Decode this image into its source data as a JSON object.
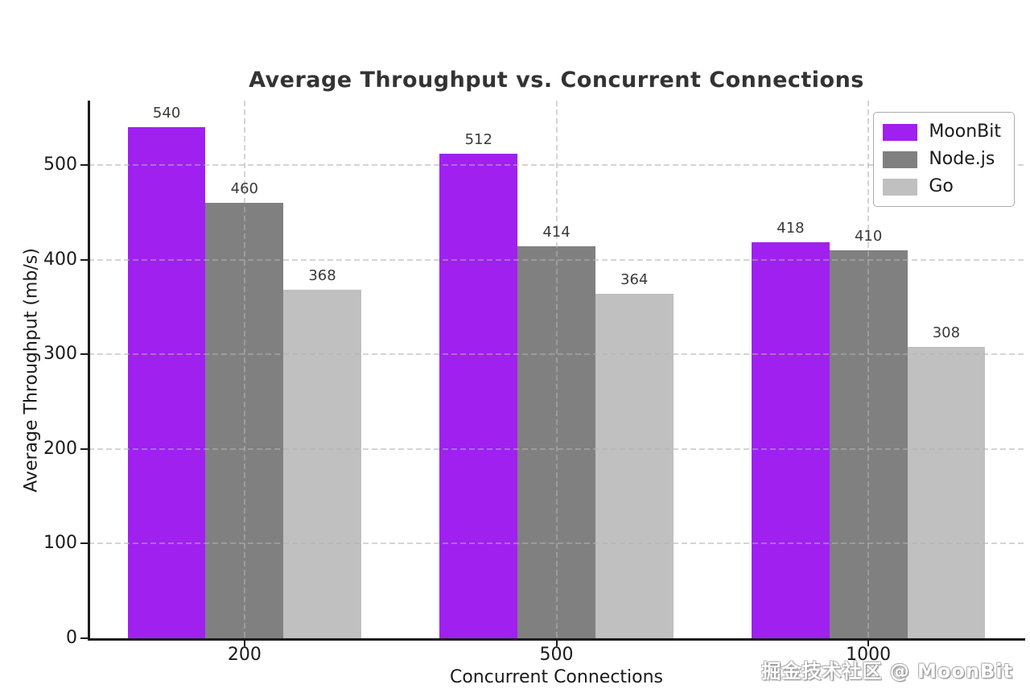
{
  "watermark": "掘金技术社区 @ MoonBit",
  "chart_data": {
    "type": "bar",
    "title": "Average Throughput vs. Concurrent Connections",
    "xlabel": "Concurrent Connections",
    "ylabel": "Average Throughput (mb/s)",
    "categories": [
      "200",
      "500",
      "1000"
    ],
    "series": [
      {
        "name": "MoonBit",
        "color": "#A020F0",
        "values": [
          540,
          512,
          418
        ]
      },
      {
        "name": "Node.js",
        "color": "#808080",
        "values": [
          460,
          414,
          410
        ]
      },
      {
        "name": "Go",
        "color": "#C0C0C0",
        "values": [
          368,
          364,
          308
        ]
      }
    ],
    "ylim": [
      0,
      568
    ],
    "yticks": [
      0,
      100,
      200,
      300,
      400,
      500
    ],
    "grid": true,
    "grid_style": "dashed",
    "legend_position": "upper right",
    "value_labels": true,
    "colors": {
      "title": "#333333",
      "axis_text": "#1a1a1a",
      "spine": "#1c1c1c",
      "grid": "#b2b2b2",
      "value_label": "#3a3a3a",
      "background": "#ffffff"
    }
  }
}
